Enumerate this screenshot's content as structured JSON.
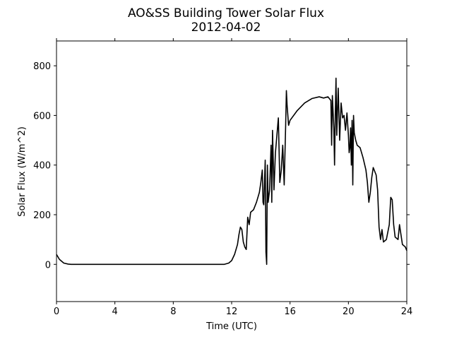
{
  "chart_data": {
    "type": "line",
    "title": "AO&SS Building Tower Solar Flux",
    "subtitle": "2012-04-02",
    "x_label": "Time (UTC)",
    "y_label": "Solar Flux (W/m^2)",
    "xlim": [
      0,
      24
    ],
    "xticks": [
      0,
      4,
      8,
      12,
      16,
      20,
      24
    ],
    "ylim": [
      -150,
      900
    ],
    "yticks": [
      0,
      200,
      400,
      600,
      800
    ],
    "series": [
      {
        "color": "#000000",
        "x": [
          0,
          0.2,
          0.5,
          0.8,
          1,
          11.5,
          11.8,
          12,
          12.2,
          12.4,
          12.5,
          12.6,
          12.7,
          12.8,
          12.9,
          13,
          13.1,
          13.2,
          13.3,
          13.5,
          13.7,
          13.9,
          14.0,
          14.1,
          14.15,
          14.2,
          14.3,
          14.35,
          14.4,
          14.45,
          14.5,
          14.6,
          14.7,
          14.75,
          14.8,
          14.9,
          15.0,
          15.1,
          15.2,
          15.3,
          15.4,
          15.5,
          15.6,
          15.7,
          15.75,
          15.8,
          15.9,
          16,
          16.5,
          17,
          17.5,
          18,
          18.3,
          18.6,
          18.8,
          18.85,
          18.9,
          19.0,
          19.05,
          19.1,
          19.15,
          19.2,
          19.3,
          19.4,
          19.5,
          19.6,
          19.7,
          19.8,
          19.9,
          20,
          20.05,
          20.1,
          20.15,
          20.2,
          20.25,
          20.3,
          20.35,
          20.4,
          20.5,
          20.6,
          20.8,
          21,
          21.2,
          21.3,
          21.4,
          21.5,
          21.6,
          21.7,
          21.9,
          22.0,
          22.1,
          22.2,
          22.3,
          22.4,
          22.6,
          22.8,
          22.9,
          23.0,
          23.1,
          23.2,
          23.4,
          23.5,
          23.6,
          23.7,
          23.9,
          24
        ],
        "values": [
          40,
          20,
          5,
          1,
          0,
          0,
          5,
          15,
          40,
          80,
          120,
          150,
          140,
          90,
          70,
          60,
          190,
          160,
          210,
          220,
          250,
          290,
          330,
          380,
          250,
          240,
          420,
          50,
          0,
          400,
          250,
          300,
          480,
          250,
          540,
          300,
          450,
          520,
          590,
          330,
          380,
          480,
          320,
          560,
          700,
          640,
          560,
          580,
          620,
          650,
          668,
          675,
          670,
          675,
          660,
          480,
          680,
          550,
          400,
          600,
          750,
          520,
          710,
          500,
          650,
          590,
          600,
          540,
          610,
          520,
          450,
          470,
          550,
          400,
          580,
          320,
          600,
          530,
          500,
          480,
          470,
          430,
          380,
          330,
          250,
          290,
          350,
          390,
          360,
          300,
          150,
          100,
          140,
          90,
          100,
          160,
          270,
          260,
          160,
          110,
          100,
          160,
          120,
          80,
          70,
          55
        ]
      }
    ]
  }
}
